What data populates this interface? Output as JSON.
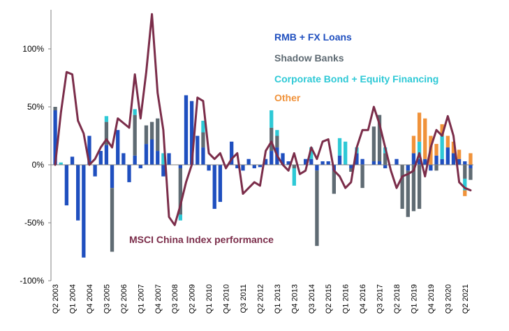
{
  "chart_data": {
    "type": "bar",
    "stacked": true,
    "ylim": [
      -100,
      130
    ],
    "y_ticks": [
      -100,
      -50,
      0,
      50,
      100
    ],
    "y_tick_labels": [
      "-100%",
      "-50%",
      "0%",
      "50%",
      "100%"
    ],
    "grid": false,
    "quarters": [
      "Q2 2003",
      "Q3 2003",
      "Q4 2003",
      "Q1 2004",
      "Q2 2004",
      "Q3 2004",
      "Q4 2004",
      "Q1 2005",
      "Q2 2005",
      "Q3 2005",
      "Q4 2005",
      "Q1 2006",
      "Q2 2006",
      "Q3 2006",
      "Q4 2006",
      "Q1 2007",
      "Q2 2007",
      "Q3 2007",
      "Q4 2007",
      "Q1 2008",
      "Q2 2008",
      "Q3 2008",
      "Q4 2008",
      "Q1 2009",
      "Q2 2009",
      "Q3 2009",
      "Q4 2009",
      "Q1 2010",
      "Q2 2010",
      "Q3 2010",
      "Q4 2010",
      "Q1 2011",
      "Q2 2011",
      "Q3 2011",
      "Q4 2011",
      "Q1 2012",
      "Q2 2012",
      "Q3 2012",
      "Q4 2012",
      "Q1 2013",
      "Q2 2013",
      "Q3 2013",
      "Q4 2013",
      "Q1 2014",
      "Q2 2014",
      "Q3 2014",
      "Q4 2014",
      "Q1 2015",
      "Q2 2015",
      "Q3 2015",
      "Q4 2015",
      "Q1 2016",
      "Q2 2016",
      "Q3 2016",
      "Q4 2016",
      "Q1 2017",
      "Q2 2017",
      "Q3 2017",
      "Q4 2017",
      "Q1 2018",
      "Q2 2018",
      "Q3 2018",
      "Q4 2018",
      "Q1 2019",
      "Q2 2019",
      "Q3 2019",
      "Q4 2019",
      "Q1 2020",
      "Q2 2020",
      "Q3 2020",
      "Q4 2020",
      "Q1 2021",
      "Q2 2021",
      "Q3 2021"
    ],
    "x_tick_labels": [
      "Q2 2003",
      "Q1 2004",
      "Q4 2004",
      "Q3 2005",
      "Q2 2006",
      "Q1 2007",
      "Q4 2007",
      "Q3 2008",
      "Q2 2009",
      "Q1 2010",
      "Q4 2010",
      "Q3 2011",
      "Q2 2012",
      "Q1 2013",
      "Q4 2013",
      "Q3 2014",
      "Q2 2015",
      "Q1 2016",
      "Q4 2016",
      "Q3 2017",
      "Q2 2018",
      "Q1 2019",
      "Q4 2019",
      "Q3 2020",
      "Q2 2021"
    ],
    "series": [
      {
        "name": "RMB + FX Loans",
        "color": "#1f4fbf",
        "values": [
          47,
          0,
          -35,
          7,
          -48,
          -80,
          25,
          -10,
          12,
          17,
          -20,
          30,
          10,
          -15,
          8,
          -3,
          18,
          22,
          12,
          -10,
          10,
          0,
          -3,
          60,
          55,
          25,
          15,
          -5,
          -38,
          -32,
          0,
          20,
          -3,
          -5,
          5,
          -3,
          -2,
          5,
          12,
          15,
          10,
          3,
          0,
          0,
          5,
          5,
          -5,
          3,
          3,
          -5,
          8,
          0,
          -3,
          10,
          5,
          0,
          3,
          3,
          -3,
          0,
          5,
          0,
          -5,
          10,
          5,
          5,
          -5,
          8,
          5,
          15,
          10,
          5,
          3,
          -3
        ]
      },
      {
        "name": "Shadow Banks",
        "color": "#5f6b73",
        "values": [
          3,
          0,
          0,
          0,
          0,
          0,
          0,
          0,
          0,
          20,
          -55,
          0,
          0,
          0,
          35,
          0,
          16,
          15,
          28,
          0,
          0,
          0,
          -40,
          0,
          0,
          0,
          13,
          0,
          0,
          0,
          0,
          0,
          0,
          0,
          0,
          0,
          0,
          0,
          20,
          10,
          0,
          0,
          -3,
          0,
          0,
          0,
          -65,
          0,
          0,
          -20,
          0,
          0,
          -3,
          0,
          -20,
          0,
          30,
          40,
          10,
          0,
          0,
          -38,
          -40,
          -40,
          -38,
          0,
          0,
          -5,
          0,
          0,
          0,
          0,
          -12,
          -10
        ]
      },
      {
        "name": "Corporate Bond + Equity Financing",
        "color": "#2ec9d6",
        "values": [
          0,
          2,
          0,
          0,
          0,
          0,
          0,
          0,
          0,
          5,
          0,
          0,
          0,
          0,
          5,
          0,
          0,
          0,
          0,
          10,
          0,
          0,
          -5,
          0,
          0,
          0,
          10,
          0,
          0,
          0,
          0,
          0,
          0,
          0,
          0,
          0,
          0,
          0,
          15,
          5,
          0,
          0,
          -15,
          0,
          0,
          10,
          0,
          0,
          0,
          0,
          15,
          20,
          0,
          5,
          0,
          0,
          0,
          0,
          5,
          0,
          0,
          0,
          0,
          0,
          15,
          0,
          0,
          0,
          20,
          0,
          0,
          0,
          -10,
          0
        ]
      },
      {
        "name": "Other",
        "color": "#f0923a",
        "values": [
          0,
          0,
          0,
          0,
          0,
          0,
          0,
          0,
          0,
          0,
          0,
          0,
          0,
          0,
          0,
          0,
          0,
          0,
          0,
          0,
          0,
          0,
          0,
          0,
          0,
          0,
          0,
          0,
          0,
          0,
          0,
          0,
          0,
          0,
          0,
          0,
          0,
          0,
          0,
          0,
          0,
          0,
          0,
          0,
          0,
          0,
          0,
          0,
          0,
          0,
          0,
          0,
          0,
          0,
          0,
          0,
          0,
          0,
          0,
          0,
          0,
          0,
          0,
          15,
          25,
          35,
          25,
          10,
          10,
          10,
          10,
          8,
          -5,
          10
        ]
      }
    ],
    "line": {
      "name": "MSCI China Index performance",
      "color": "#7b2d4a",
      "values": [
        0,
        45,
        80,
        78,
        38,
        27,
        0,
        5,
        15,
        22,
        15,
        40,
        36,
        32,
        78,
        40,
        80,
        130,
        62,
        30,
        -45,
        -52,
        -35,
        -15,
        0,
        58,
        55,
        10,
        5,
        10,
        -3,
        5,
        10,
        -25,
        -20,
        -15,
        -18,
        12,
        20,
        8,
        0,
        -5,
        10,
        -8,
        -5,
        15,
        5,
        20,
        22,
        -5,
        -10,
        -20,
        -15,
        15,
        30,
        30,
        50,
        35,
        15,
        -5,
        -20,
        -10,
        -8,
        -5,
        10,
        -10,
        15,
        30,
        25,
        42,
        25,
        -15,
        -20,
        -22
      ]
    }
  },
  "legend": {
    "items": [
      {
        "label": "RMB + FX Loans",
        "color": "#1f4fbf"
      },
      {
        "label": "Shadow Banks",
        "color": "#5f6b73"
      },
      {
        "label": "Corporate Bond + Equity Financing",
        "color": "#2ec9d6"
      },
      {
        "label": "Other",
        "color": "#f0923a"
      }
    ]
  },
  "annotation": {
    "label": "MSCI China Index performance",
    "color": "#7b2d4a"
  }
}
